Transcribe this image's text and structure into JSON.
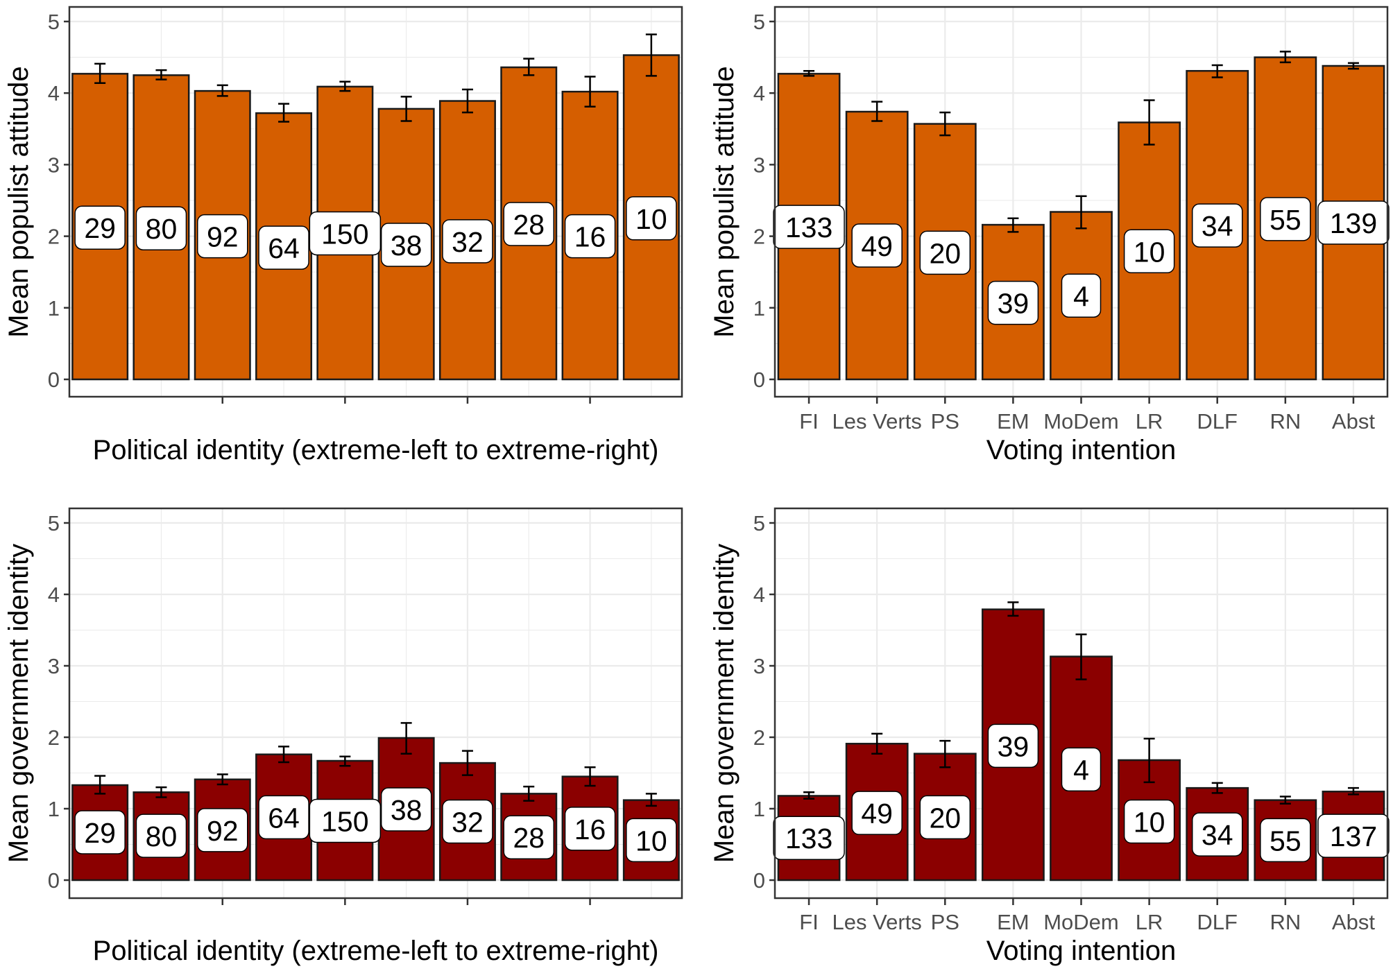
{
  "colors": {
    "populist_bar": "#d55e00",
    "government_bar": "#8b0000",
    "bar_border": "#1a1a1a",
    "panel_border": "#333333",
    "grid": "#ebebeb",
    "tick_text": "#4d4d4d",
    "axis_title": "#000000"
  },
  "chart_data": [
    {
      "type": "bar",
      "panel": "top-left",
      "categories": [
        "",
        "",
        "",
        "",
        "",
        "",
        "",
        "",
        "",
        ""
      ],
      "values": [
        4.27,
        4.25,
        4.03,
        3.72,
        4.09,
        3.78,
        3.89,
        4.36,
        4.02,
        4.53
      ],
      "error_low": [
        4.14,
        4.19,
        3.96,
        3.6,
        4.03,
        3.61,
        3.73,
        4.25,
        3.81,
        4.24
      ],
      "error_high": [
        4.41,
        4.32,
        4.11,
        3.85,
        4.16,
        3.95,
        4.05,
        4.48,
        4.23,
        4.82
      ],
      "count_labels": [
        "29",
        "80",
        "92",
        "64",
        "150",
        "38",
        "32",
        "28",
        "16",
        "10"
      ],
      "count_label_y": [
        2.12,
        2.11,
        2.0,
        1.84,
        2.04,
        1.88,
        1.93,
        2.17,
        2.0,
        2.25
      ],
      "xlabel": "Political identity (extreme-left to extreme-right)",
      "ylabel": "Mean populist attitude",
      "ylim": [
        0,
        5
      ],
      "yticks": [
        "0",
        "1",
        "2",
        "3",
        "4",
        "5"
      ],
      "grid": true,
      "bar_color": "#d55e00"
    },
    {
      "type": "bar",
      "panel": "top-right",
      "categories": [
        "FI",
        "Les Verts",
        "PS",
        "EM",
        "MoDem",
        "LR",
        "DLF",
        "RN",
        "Abst"
      ],
      "values": [
        4.27,
        3.74,
        3.57,
        2.16,
        2.34,
        3.59,
        4.31,
        4.5,
        4.38
      ],
      "error_low": [
        4.24,
        3.61,
        3.41,
        2.06,
        2.11,
        3.28,
        4.22,
        4.43,
        4.34
      ],
      "error_high": [
        4.31,
        3.88,
        3.73,
        2.25,
        2.56,
        3.9,
        4.39,
        4.58,
        4.42
      ],
      "count_labels": [
        "133",
        "49",
        "20",
        "39",
        "4",
        "10",
        "34",
        "55",
        "139"
      ],
      "count_label_y": [
        2.13,
        1.87,
        1.77,
        1.07,
        1.17,
        1.79,
        2.15,
        2.24,
        2.19
      ],
      "xlabel": "Voting intention",
      "ylabel": "Mean populist attitude",
      "ylim": [
        0,
        5
      ],
      "yticks": [
        "0",
        "1",
        "2",
        "3",
        "4",
        "5"
      ],
      "grid": true,
      "bar_color": "#d55e00"
    },
    {
      "type": "bar",
      "panel": "bottom-left",
      "categories": [
        "",
        "",
        "",
        "",
        "",
        "",
        "",
        "",
        "",
        ""
      ],
      "values": [
        1.33,
        1.23,
        1.41,
        1.76,
        1.67,
        1.99,
        1.64,
        1.21,
        1.45,
        1.12
      ],
      "error_low": [
        1.21,
        1.16,
        1.34,
        1.65,
        1.6,
        1.77,
        1.47,
        1.11,
        1.32,
        1.04
      ],
      "error_high": [
        1.46,
        1.3,
        1.48,
        1.87,
        1.73,
        2.2,
        1.81,
        1.31,
        1.58,
        1.21
      ],
      "count_labels": [
        "29",
        "80",
        "92",
        "64",
        "150",
        "38",
        "32",
        "28",
        "16",
        "10"
      ],
      "count_label_y": [
        0.67,
        0.62,
        0.7,
        0.88,
        0.83,
        0.99,
        0.82,
        0.6,
        0.72,
        0.56
      ],
      "xlabel": "Political identity (extreme-left to extreme-right)",
      "ylabel": "Mean government identity",
      "ylim": [
        0,
        5
      ],
      "yticks": [
        "0",
        "1",
        "2",
        "3",
        "4",
        "5"
      ],
      "grid": true,
      "bar_color": "#8b0000"
    },
    {
      "type": "bar",
      "panel": "bottom-right",
      "categories": [
        "FI",
        "Les Verts",
        "PS",
        "EM",
        "MoDem",
        "LR",
        "DLF",
        "RN",
        "Abst"
      ],
      "values": [
        1.18,
        1.91,
        1.77,
        3.79,
        3.13,
        1.68,
        1.29,
        1.12,
        1.24
      ],
      "error_low": [
        1.14,
        1.77,
        1.58,
        3.7,
        2.81,
        1.37,
        1.22,
        1.07,
        1.2
      ],
      "error_high": [
        1.23,
        2.05,
        1.95,
        3.89,
        3.44,
        1.98,
        1.36,
        1.17,
        1.29
      ],
      "count_labels": [
        "133",
        "49",
        "20",
        "39",
        "4",
        "10",
        "34",
        "55",
        "137"
      ],
      "count_label_y": [
        0.59,
        0.94,
        0.88,
        1.88,
        1.55,
        0.82,
        0.64,
        0.56,
        0.62
      ],
      "xlabel": "Voting intention",
      "ylabel": "Mean government identity",
      "ylim": [
        0,
        5
      ],
      "yticks": [
        "0",
        "1",
        "2",
        "3",
        "4",
        "5"
      ],
      "grid": true,
      "bar_color": "#8b0000"
    }
  ]
}
